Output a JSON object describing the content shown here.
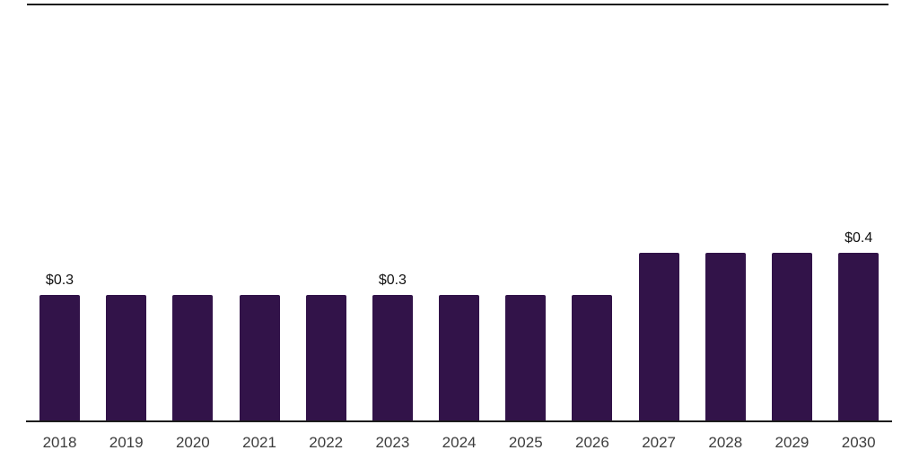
{
  "chart_data": {
    "type": "bar",
    "title": "",
    "xlabel": "",
    "ylabel": "",
    "categories": [
      "2018",
      "2019",
      "2020",
      "2021",
      "2022",
      "2023",
      "2024",
      "2025",
      "2026",
      "2027",
      "2028",
      "2029",
      "2030"
    ],
    "values": [
      0.3,
      0.3,
      0.3,
      0.3,
      0.3,
      0.3,
      0.3,
      0.3,
      0.3,
      0.4,
      0.4,
      0.4,
      0.4
    ],
    "data_labels": [
      "$0.3",
      "",
      "",
      "",
      "",
      "$0.3",
      "",
      "",
      "",
      "",
      "",
      "",
      "$0.4"
    ],
    "ylim": [
      0,
      0.45
    ],
    "grid": "off",
    "legend": "none",
    "colors": {
      "bar": "#321349",
      "axis": "#1c1c1c",
      "top_divider": "#1c1c1c",
      "year_label": "#3d3d3d",
      "value_label": "#111111",
      "background": "#ffffff"
    }
  }
}
